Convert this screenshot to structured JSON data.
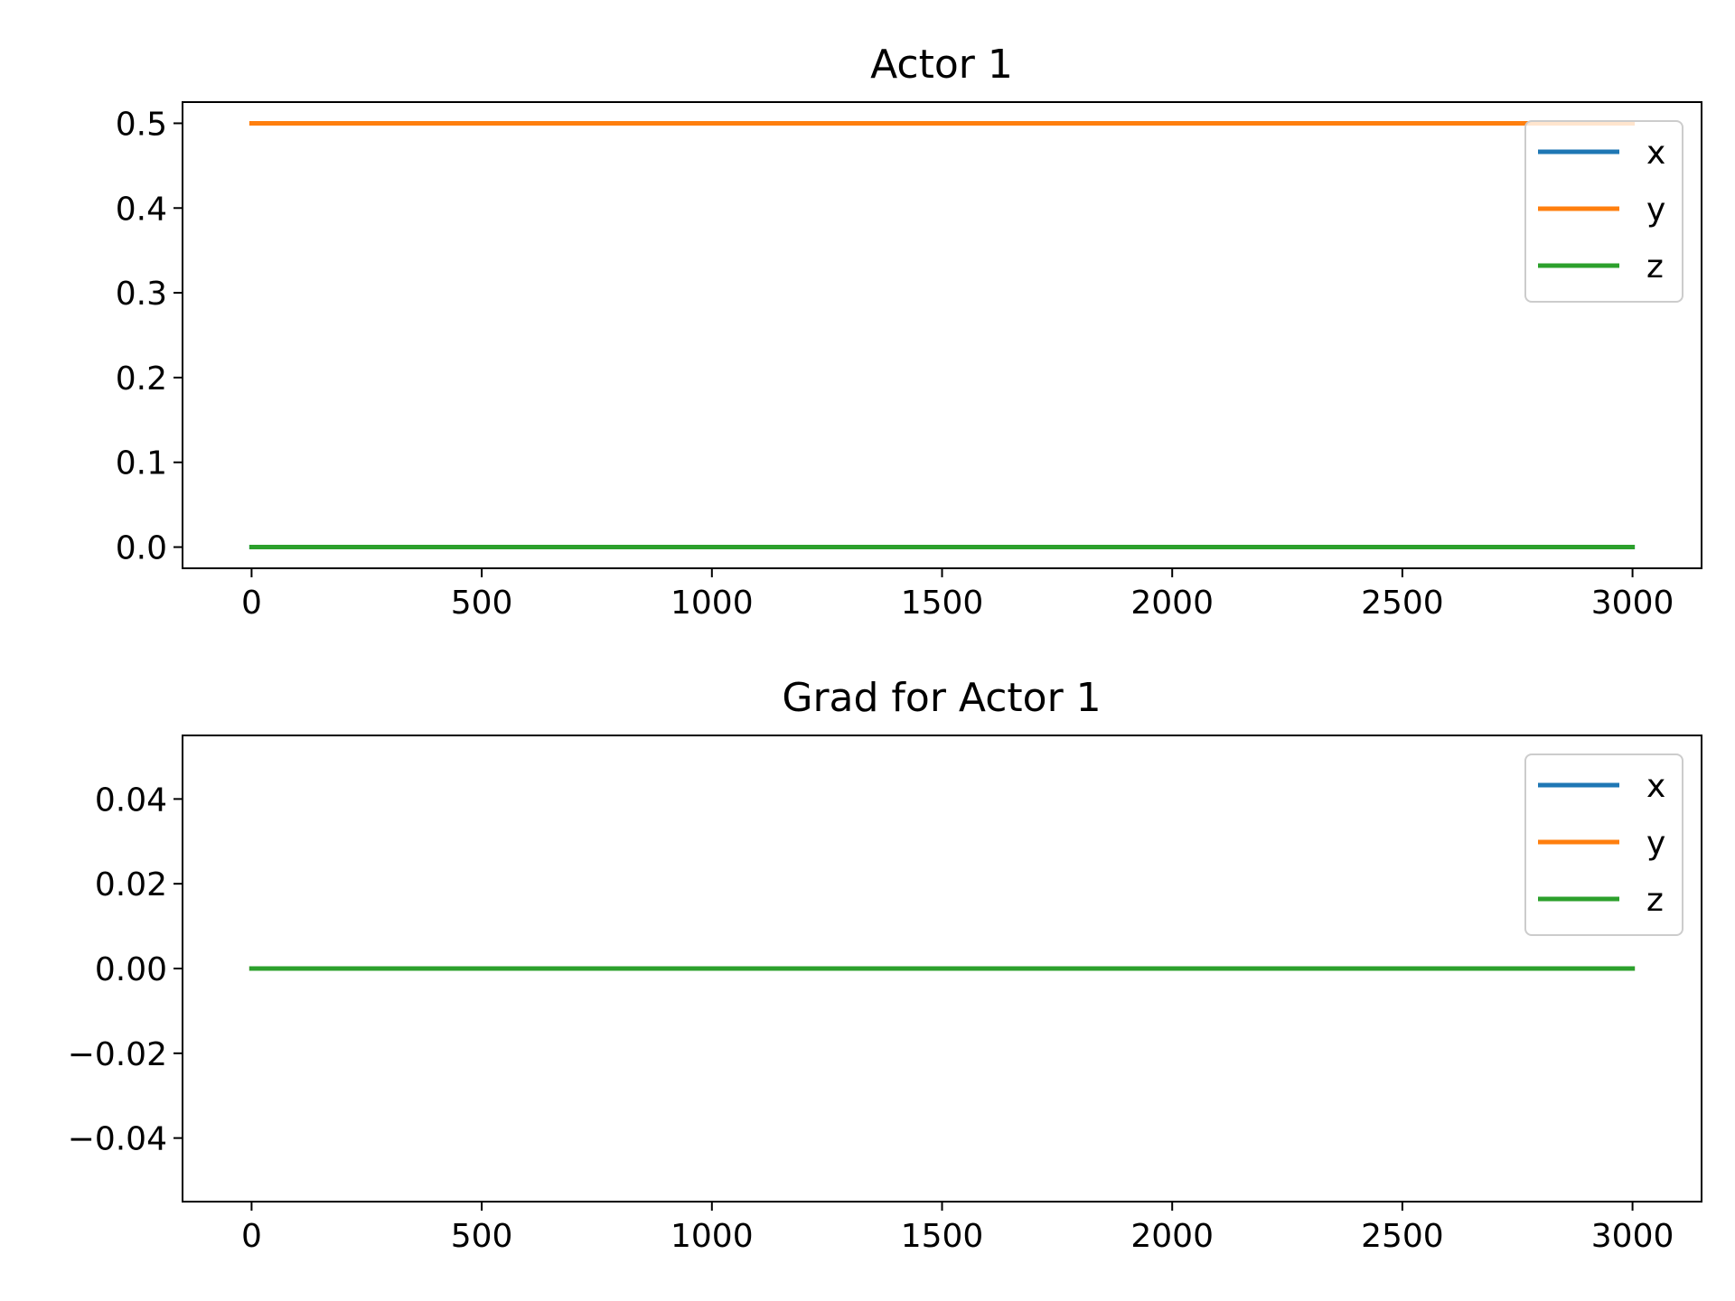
{
  "chart_data": [
    {
      "type": "line",
      "title": "Actor 1",
      "xlabel": "",
      "ylabel": "",
      "xlim": [
        -150,
        3150
      ],
      "ylim": [
        -0.025,
        0.525
      ],
      "xticks": [
        0,
        500,
        1000,
        1500,
        2000,
        2500,
        3000
      ],
      "xtick_labels": [
        "0",
        "500",
        "1000",
        "1500",
        "2000",
        "2500",
        "3000"
      ],
      "yticks": [
        0.0,
        0.1,
        0.2,
        0.3,
        0.4,
        0.5
      ],
      "ytick_labels": [
        "0.0",
        "0.1",
        "0.2",
        "0.3",
        "0.4",
        "0.5"
      ],
      "grid": false,
      "legend_position": "upper right",
      "series": [
        {
          "name": "x",
          "color": "#1f77b4",
          "x": [
            0,
            3000
          ],
          "y": [
            0.0,
            0.0
          ]
        },
        {
          "name": "y",
          "color": "#ff7f0e",
          "x": [
            0,
            3000
          ],
          "y": [
            0.5,
            0.5
          ]
        },
        {
          "name": "z",
          "color": "#2ca02c",
          "x": [
            0,
            3000
          ],
          "y": [
            0.0,
            0.0
          ]
        }
      ]
    },
    {
      "type": "line",
      "title": "Grad for Actor 1",
      "xlabel": "",
      "ylabel": "",
      "xlim": [
        -150,
        3150
      ],
      "ylim": [
        -0.055,
        0.055
      ],
      "xticks": [
        0,
        500,
        1000,
        1500,
        2000,
        2500,
        3000
      ],
      "xtick_labels": [
        "0",
        "500",
        "1000",
        "1500",
        "2000",
        "2500",
        "3000"
      ],
      "yticks": [
        0.04,
        0.02,
        0.0,
        -0.02,
        -0.04
      ],
      "ytick_labels": [
        "0.04",
        "0.02",
        "0.00",
        "−0.02",
        "−0.04"
      ],
      "grid": false,
      "legend_position": "upper right",
      "series": [
        {
          "name": "x",
          "color": "#1f77b4",
          "x": [
            0,
            3000
          ],
          "y": [
            0.0,
            0.0
          ]
        },
        {
          "name": "y",
          "color": "#ff7f0e",
          "x": [
            0,
            3000
          ],
          "y": [
            0.0,
            0.0
          ]
        },
        {
          "name": "z",
          "color": "#2ca02c",
          "x": [
            0,
            3000
          ],
          "y": [
            0.0,
            0.0
          ]
        }
      ]
    }
  ]
}
